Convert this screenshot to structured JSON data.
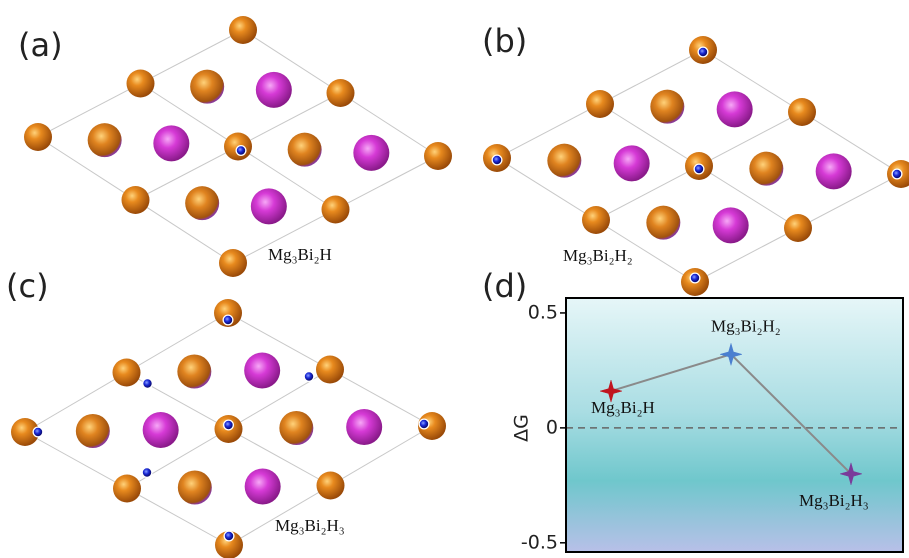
{
  "panels": [
    {
      "label": "(a)",
      "formula": "Mg₃Bi₂H"
    },
    {
      "label": "(b)",
      "formula": "Mg₃Bi₂H₂"
    },
    {
      "label": "(c)",
      "formula": "Mg₃Bi₂H₃"
    },
    {
      "label": "(d)"
    }
  ],
  "chart_data": {
    "type": "scatter",
    "ylabel": "ΔG",
    "categories": [
      "Mg₃Bi₂H",
      "Mg₃Bi₂H₂",
      "Mg₃Bi₂H₃"
    ],
    "values": [
      0.16,
      0.32,
      -0.2
    ],
    "colors": [
      "#c0141e",
      "#4a7fd0",
      "#7a3a9a"
    ],
    "line_color": "#8a8a8a",
    "ylim": [
      -0.54,
      0.565
    ],
    "yticks": [
      0.5,
      0,
      -0.5
    ],
    "reference_line": 0
  }
}
